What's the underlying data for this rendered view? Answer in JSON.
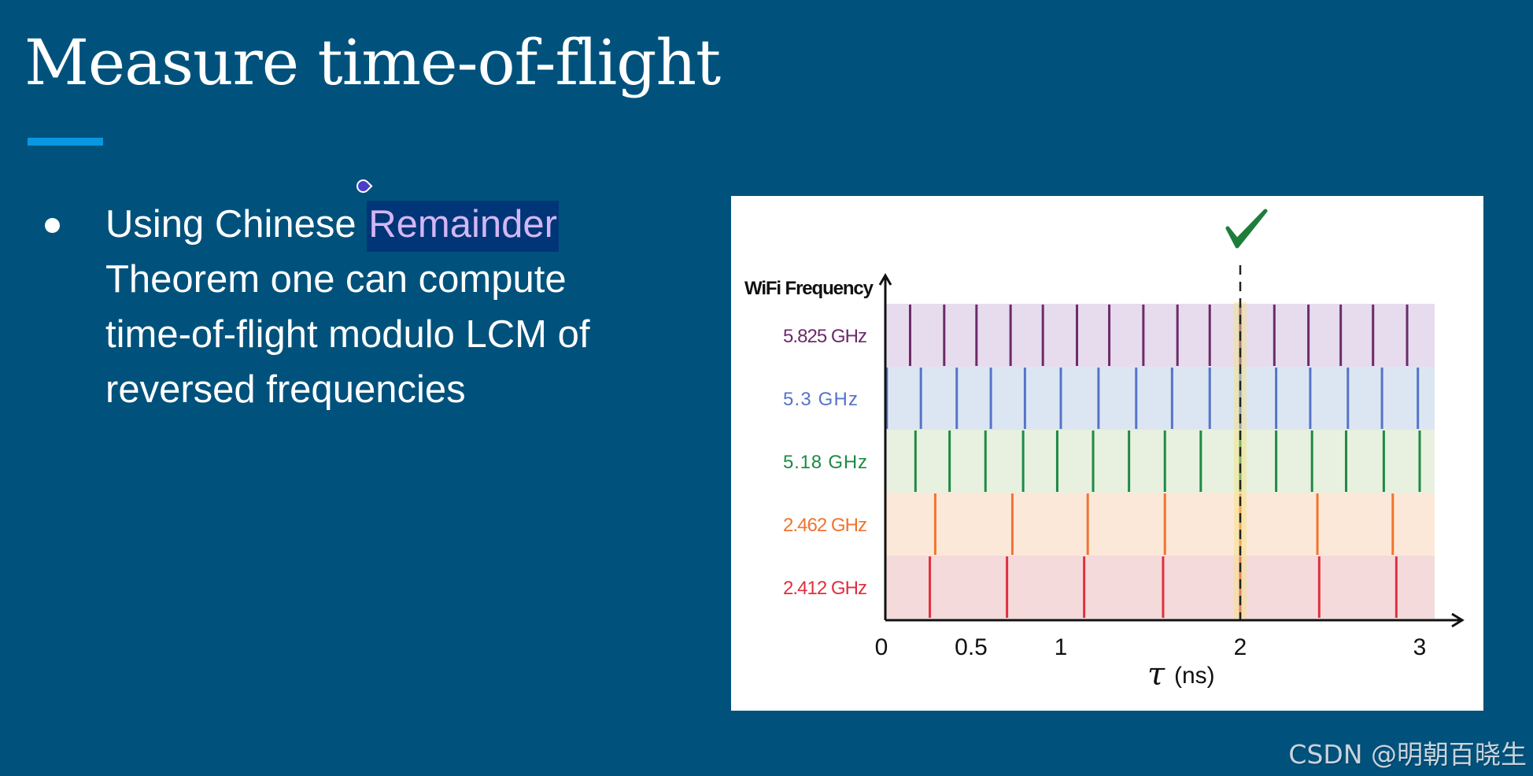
{
  "slide": {
    "title": "Measure time-of-flight",
    "accent_color": "#0897e0",
    "background_color": "#00527c",
    "bullets": [
      {
        "lines": [
          {
            "before": "Using Chinese ",
            "selected": "Remainder"
          },
          {
            "text": "Theorem one can compute"
          },
          {
            "text": "time-of-flight modulo LCM of"
          },
          {
            "text": "reversed frequencies"
          }
        ]
      }
    ]
  },
  "watermark": "CSDN @明朝百晓生",
  "chart_data": {
    "type": "scatter",
    "subtype": "event-tick-raster",
    "title": "",
    "ylabel": "WiFi Frequency",
    "xlabel": "τ (ns)",
    "xlabel_symbol": "τ",
    "xlabel_unit": "(ns)",
    "x_ticks": [
      {
        "label": "0",
        "value": 0
      },
      {
        "label": "0.5",
        "value": 0.5
      },
      {
        "label": "1",
        "value": 1
      },
      {
        "label": "2",
        "value": 2
      },
      {
        "label": "3",
        "value": 3
      }
    ],
    "xlim": [
      0,
      3.1
    ],
    "grid": false,
    "annotation": {
      "type": "checkmark",
      "x": 2,
      "label": "✓",
      "color": "#1e7d3a",
      "highlight_color": "#f5e27a"
    },
    "series": [
      {
        "name": "5.825 GHz",
        "color": "#6d2a6a",
        "band_color": "#e6dcee",
        "x": [
          0.16,
          0.35,
          0.53,
          0.72,
          0.9,
          1.09,
          1.27,
          1.46,
          1.65,
          1.83,
          2.0,
          2.19,
          2.38,
          2.56,
          2.74,
          2.93
        ]
      },
      {
        "name": "5.3 GHz",
        "color": "#5574c8",
        "band_color": "#dce6f2",
        "x": [
          0.03,
          0.22,
          0.42,
          0.61,
          0.8,
          1.0,
          1.21,
          1.42,
          1.62,
          1.83,
          2.0,
          2.2,
          2.39,
          2.6,
          2.79,
          2.99
        ]
      },
      {
        "name": "5.18 GHz",
        "color": "#1f8a45",
        "band_color": "#e8f0df",
        "x": [
          0.19,
          0.38,
          0.58,
          0.79,
          0.98,
          1.18,
          1.38,
          1.58,
          1.78,
          2.0,
          2.2,
          2.4,
          2.59,
          2.8,
          3.0
        ]
      },
      {
        "name": "2.462 GHz",
        "color": "#ef7430",
        "band_color": "#fce8d8",
        "x": [
          0.3,
          0.73,
          1.15,
          1.58,
          2.0,
          2.43,
          2.85
        ]
      },
      {
        "name": "2.412 GHz",
        "color": "#e0303f",
        "band_color": "#f4dada",
        "x": [
          0.27,
          0.7,
          1.13,
          1.57,
          2.0,
          2.44,
          2.87
        ]
      }
    ]
  }
}
